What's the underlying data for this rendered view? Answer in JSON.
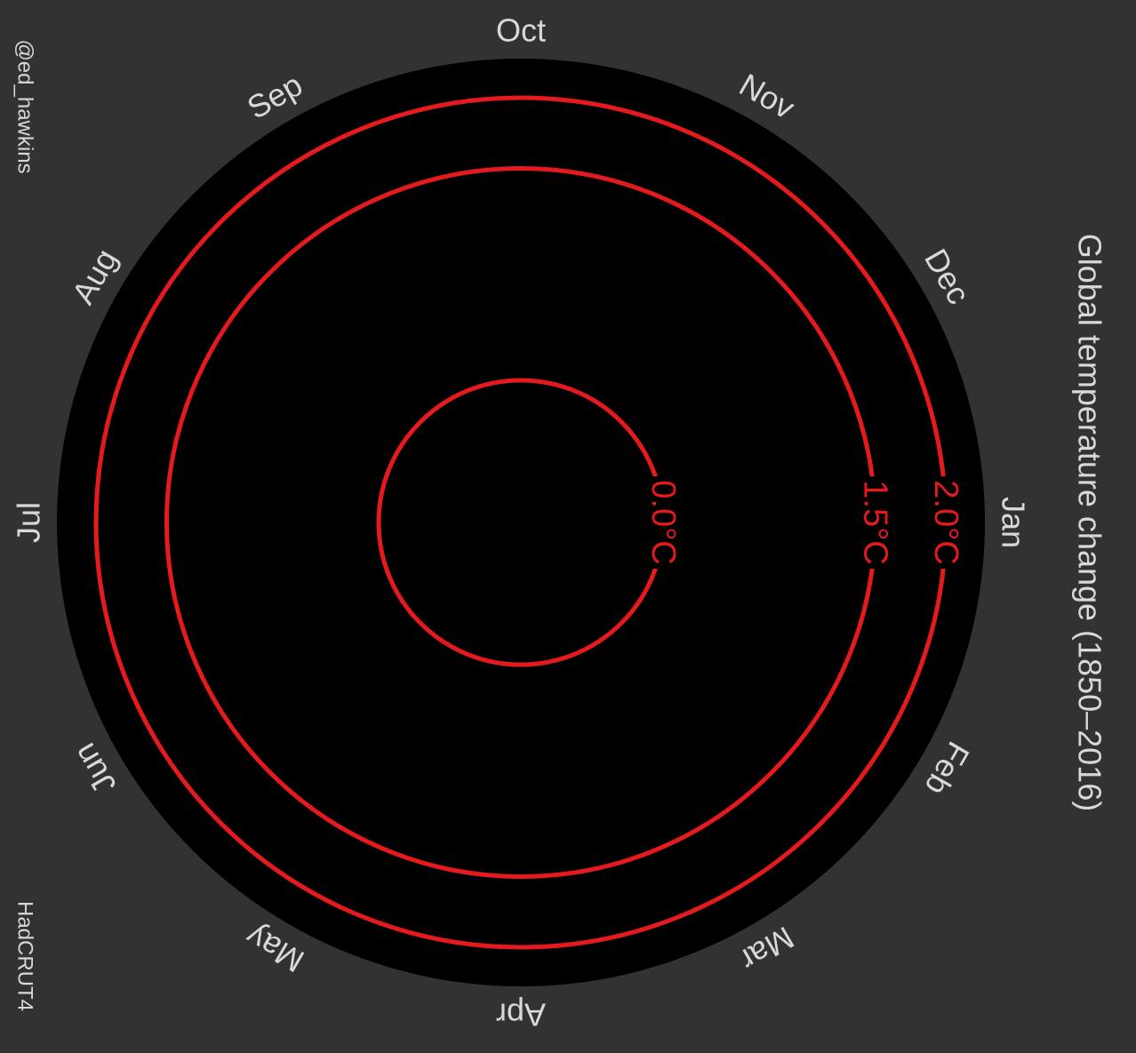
{
  "chart_data": {
    "type": "polar-line",
    "title": "Global temperature change (1850–2016)",
    "credit": "@ed_hawkins",
    "source": "HadCRUT4",
    "months": [
      "Jan",
      "Feb",
      "Mar",
      "Apr",
      "May",
      "Jun",
      "Jul",
      "Aug",
      "Sep",
      "Oct",
      "Nov",
      "Dec"
    ],
    "reference_rings": [
      {
        "value": 0.0,
        "label": "0.0°C"
      },
      {
        "value": 1.5,
        "label": "1.5°C"
      },
      {
        "value": 2.0,
        "label": "2.0°C"
      }
    ],
    "radial_range": [
      -1.0,
      2.5
    ],
    "colors": {
      "background": "#323230",
      "plot_area": "#000000",
      "rings": "#e41a1c",
      "text": "#d8d8d8"
    }
  }
}
